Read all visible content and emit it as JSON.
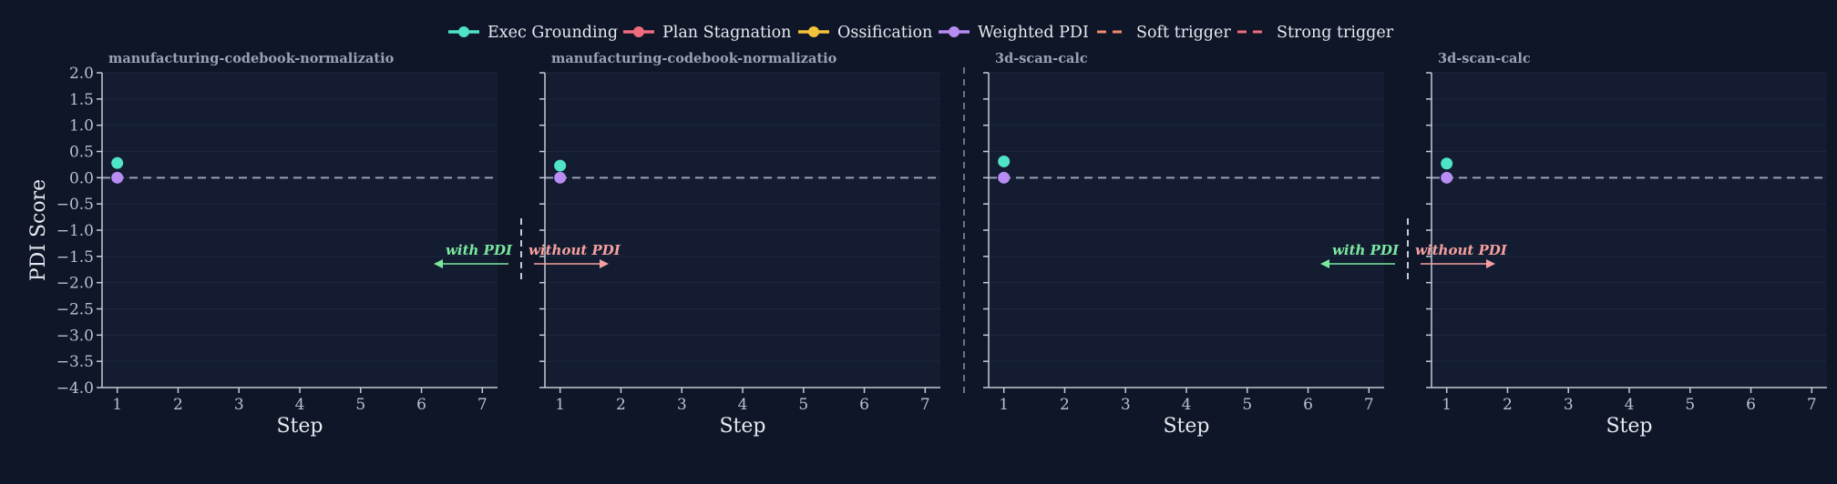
{
  "legend": {
    "items": [
      {
        "label": "Exec Grounding",
        "color": "#4fe3c8",
        "style": "line-marker"
      },
      {
        "label": "Plan Stagnation",
        "color": "#f06b7d",
        "style": "line-marker"
      },
      {
        "label": "Ossification",
        "color": "#f5c33b",
        "style": "line-marker"
      },
      {
        "label": "Weighted PDI",
        "color": "#b88cf2",
        "style": "line-marker"
      },
      {
        "label": "Soft trigger",
        "color": "#f08c6a",
        "style": "dashed"
      },
      {
        "label": "Strong trigger",
        "color": "#f06b7d",
        "style": "dashed"
      }
    ]
  },
  "annotations": {
    "with_pdi": "with PDI",
    "without_pdi": "without PDI",
    "with_color": "#7be8a0",
    "without_color": "#f5a0a0"
  },
  "colors": {
    "background": "#0e1628",
    "panel_bg": "#131c30",
    "axis": "#c5cbd6",
    "zero_line": "#9aa3b5",
    "grid": "#1d2740",
    "divider": "#8a93a5"
  },
  "chart_data": [
    {
      "type": "line",
      "title": "manufacturing-codebook-normalizatio",
      "xlabel": "Step",
      "ylabel": "PDI Score",
      "xlim": [
        0.75,
        7.25
      ],
      "ylim": [
        -4.0,
        2.0
      ],
      "xticks": [
        "1",
        "2",
        "3",
        "4",
        "5",
        "6",
        "7"
      ],
      "yticks": [
        "2.0",
        "1.5",
        "1.0",
        "0.5",
        "0.0",
        "−0.5",
        "−1.0",
        "−1.5",
        "−2.0",
        "−2.5",
        "−3.0",
        "−3.5",
        "−4.0"
      ],
      "zero_line": 0,
      "series": [
        {
          "name": "Exec Grounding",
          "x": [
            1
          ],
          "y": [
            0.28
          ]
        },
        {
          "name": "Weighted PDI",
          "x": [
            1
          ],
          "y": [
            0.0
          ]
        }
      ]
    },
    {
      "type": "line",
      "title": "manufacturing-codebook-normalizatio",
      "xlabel": "Step",
      "ylabel": "",
      "xlim": [
        0.75,
        7.25
      ],
      "ylim": [
        -4.0,
        2.0
      ],
      "xticks": [
        "1",
        "2",
        "3",
        "4",
        "5",
        "6",
        "7"
      ],
      "yticks": [],
      "zero_line": 0,
      "series": [
        {
          "name": "Exec Grounding",
          "x": [
            1
          ],
          "y": [
            0.23
          ]
        },
        {
          "name": "Weighted PDI",
          "x": [
            1
          ],
          "y": [
            0.0
          ]
        }
      ]
    },
    {
      "type": "line",
      "title": "3d-scan-calc",
      "xlabel": "Step",
      "ylabel": "",
      "xlim": [
        0.75,
        7.25
      ],
      "ylim": [
        -4.0,
        2.0
      ],
      "xticks": [
        "1",
        "2",
        "3",
        "4",
        "5",
        "6",
        "7"
      ],
      "yticks": [],
      "zero_line": 0,
      "series": [
        {
          "name": "Exec Grounding",
          "x": [
            1
          ],
          "y": [
            0.31
          ]
        },
        {
          "name": "Weighted PDI",
          "x": [
            1
          ],
          "y": [
            0.0
          ]
        }
      ]
    },
    {
      "type": "line",
      "title": "3d-scan-calc",
      "xlabel": "Step",
      "ylabel": "",
      "xlim": [
        0.75,
        7.25
      ],
      "ylim": [
        -4.0,
        2.0
      ],
      "xticks": [
        "1",
        "2",
        "3",
        "4",
        "5",
        "6",
        "7"
      ],
      "yticks": [],
      "zero_line": 0,
      "series": [
        {
          "name": "Exec Grounding",
          "x": [
            1
          ],
          "y": [
            0.27
          ]
        },
        {
          "name": "Weighted PDI",
          "x": [
            1
          ],
          "y": [
            0.0
          ]
        }
      ]
    }
  ]
}
